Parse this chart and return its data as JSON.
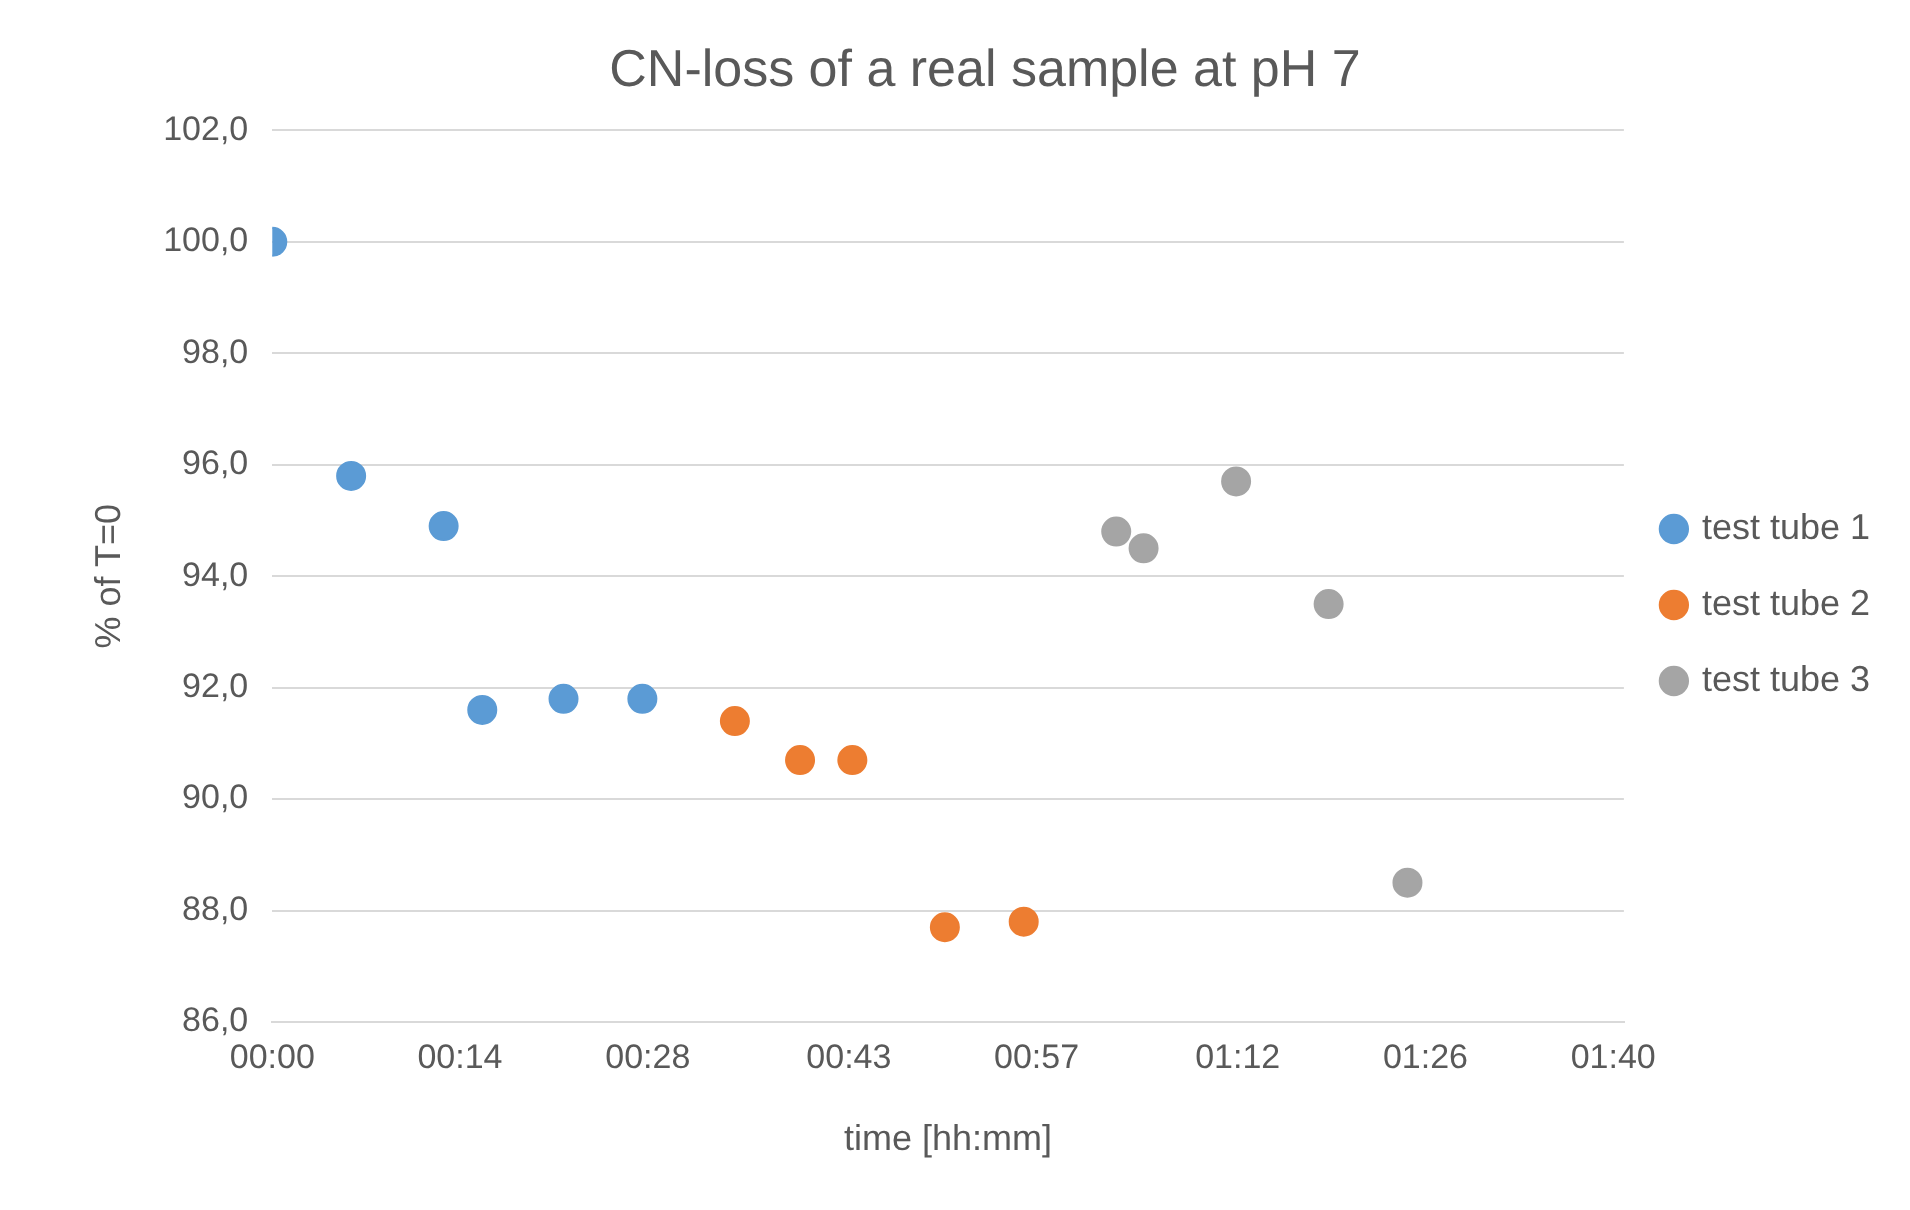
{
  "chart_data": {
    "type": "scatter",
    "title": "CN-loss of a real sample at pH 7",
    "xlabel": "time [hh:mm]",
    "ylabel": "% of T=0",
    "series": [
      {
        "name": "test tube 1",
        "color": "#5b9bd5",
        "x": [
          0,
          0.098,
          0.213,
          0.261,
          0.362,
          0.46
        ],
        "values": [
          100.0,
          95.8,
          94.9,
          91.6,
          91.8,
          91.8
        ]
      },
      {
        "name": "test tube 2",
        "color": "#ed7d31",
        "x": [
          0.575,
          0.656,
          0.721,
          0.836,
          0.934
        ],
        "values": [
          91.4,
          90.7,
          90.7,
          87.7,
          87.8
        ]
      },
      {
        "name": "test tube 3",
        "color": "#a5a5a5",
        "x": [
          1.049,
          1.083,
          1.198,
          1.313,
          1.411
        ],
        "values": [
          94.8,
          94.5,
          95.7,
          93.5,
          88.5
        ]
      }
    ],
    "xlim": [
      0,
      1.68
    ],
    "xticks": [
      {
        "value": 0,
        "label": "00:00"
      },
      {
        "value": 0.2333,
        "label": "00:14"
      },
      {
        "value": 0.4667,
        "label": "00:28"
      },
      {
        "value": 0.7167,
        "label": "00:43"
      },
      {
        "value": 0.95,
        "label": "00:57"
      },
      {
        "value": 1.2,
        "label": "01:12"
      },
      {
        "value": 1.4333,
        "label": "01:26"
      },
      {
        "value": 1.6667,
        "label": "01:40"
      }
    ],
    "ylim": [
      86,
      102
    ],
    "yticks": [
      {
        "value": 86,
        "label": "86,0"
      },
      {
        "value": 88,
        "label": "88,0"
      },
      {
        "value": 90,
        "label": "90,0"
      },
      {
        "value": 92,
        "label": "92,0"
      },
      {
        "value": 94,
        "label": "94,0"
      },
      {
        "value": 96,
        "label": "96,0"
      },
      {
        "value": 98,
        "label": "98,0"
      },
      {
        "value": 100,
        "label": "100,0"
      },
      {
        "value": 102,
        "label": "102,0"
      }
    ],
    "grid": "y",
    "legend": "right",
    "marker": "circle"
  }
}
